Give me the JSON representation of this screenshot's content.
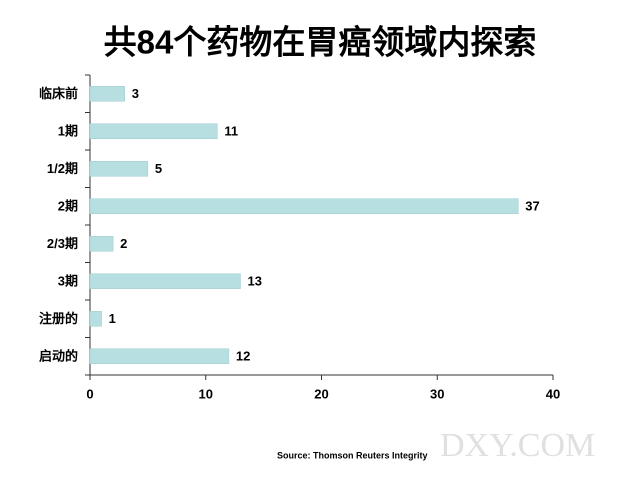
{
  "chart_data": {
    "type": "bar",
    "orientation": "horizontal",
    "title": "共84个药物在胃癌领域内探索",
    "categories": [
      "临床前",
      "1期",
      "1/2期",
      "2期",
      "2/3期",
      "3期",
      "注册的",
      "启动的"
    ],
    "values": [
      3,
      11,
      5,
      37,
      2,
      13,
      1,
      12
    ],
    "color": "#b7dfe1",
    "xlim": [
      0,
      40
    ],
    "xticks": [
      0,
      10,
      20,
      30,
      40
    ],
    "source": "Source: Thomson Reuters Integrity",
    "watermark": "DXY.COM"
  }
}
